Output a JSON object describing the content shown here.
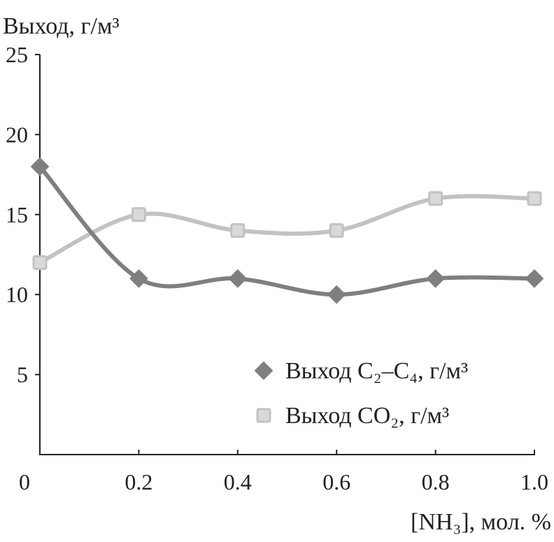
{
  "chart_data": {
    "type": "line",
    "title": "",
    "ylabel": "Выход, г/м³",
    "xlabel": "[NH₃], мол. %",
    "x": [
      0,
      0.2,
      0.4,
      0.6,
      0.8,
      1.0
    ],
    "xticks": [
      "0",
      "0.2",
      "0.4",
      "0.6",
      "0.8",
      "1.0"
    ],
    "yticks": [
      "5",
      "10",
      "15",
      "20",
      "25"
    ],
    "xlim": [
      0,
      1.0
    ],
    "ylim": [
      0,
      25
    ],
    "grid": false,
    "legend_position": "bottom-right",
    "series": [
      {
        "name": "Выход C₂–C₄, г/м³",
        "marker": "diamond",
        "color": "#7f7f7f",
        "values": [
          18,
          11,
          11,
          10,
          11,
          11
        ]
      },
      {
        "name": "Выход CO₂, г/м³",
        "marker": "square",
        "color": "#c2c2c2",
        "fill": "#d9d9d9",
        "values": [
          12,
          15,
          14,
          14,
          16,
          16
        ]
      }
    ]
  }
}
